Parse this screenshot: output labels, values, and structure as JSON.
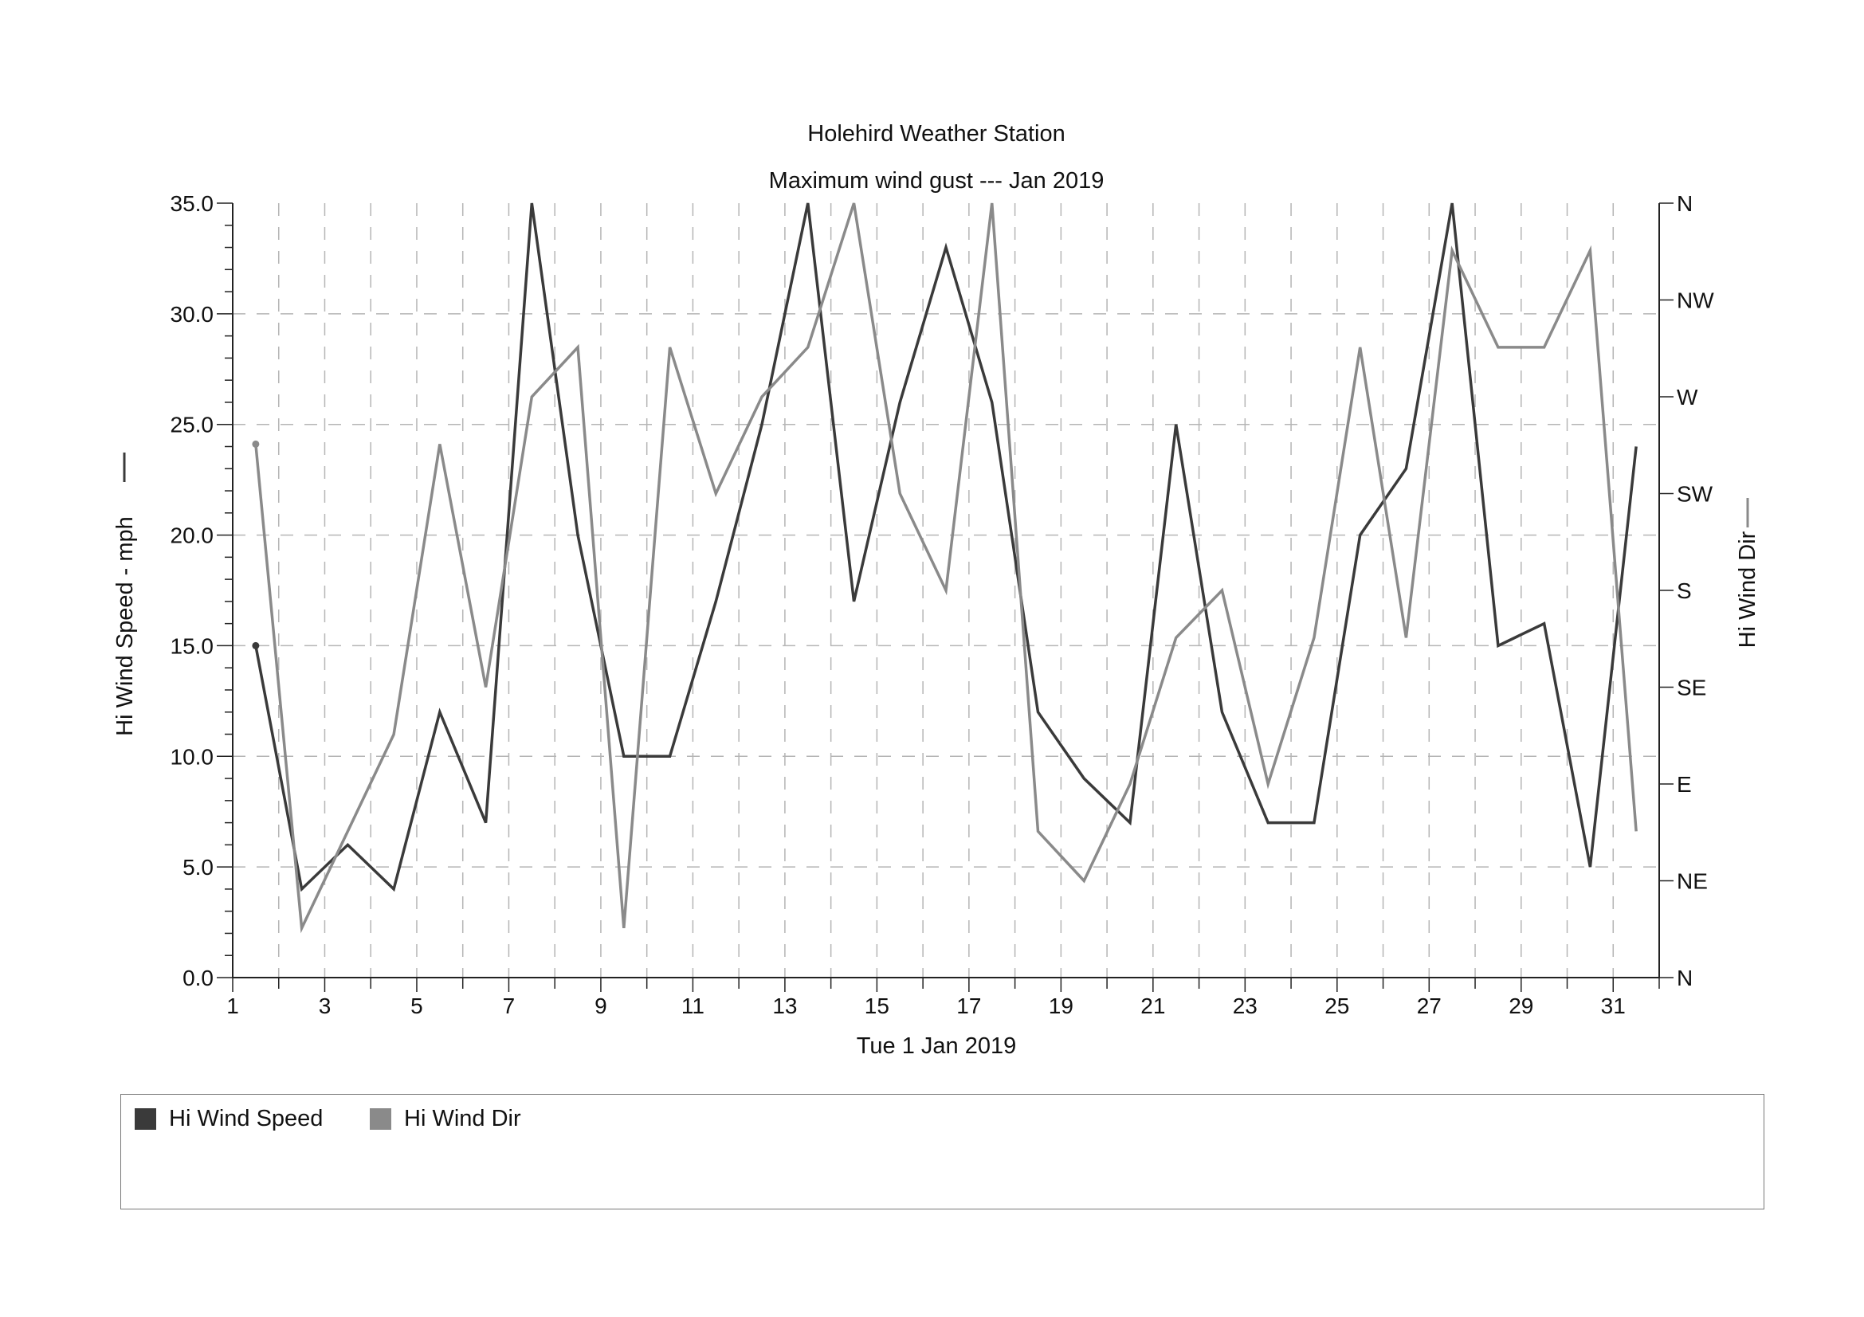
{
  "chart_data": {
    "type": "line",
    "title": "Holehird Weather Station",
    "subtitle": "Maximum wind gust --- Jan 2019",
    "xlabel": "Tue 1 Jan 2019",
    "ylabel": "Hi Wind Speed - mph",
    "y2label": "Hi Wind Dir",
    "xlim": [
      1,
      32
    ],
    "ylim": [
      0,
      35
    ],
    "x_ticks": [
      1,
      3,
      5,
      7,
      9,
      11,
      13,
      15,
      17,
      19,
      21,
      23,
      25,
      27,
      29,
      31
    ],
    "y_ticks": [
      "0.0",
      "5.0",
      "10.0",
      "15.0",
      "20.0",
      "25.0",
      "30.0",
      "35.0"
    ],
    "y2_ticks": [
      "N",
      "NE",
      "E",
      "SE",
      "S",
      "SW",
      "W",
      "NW",
      "N"
    ],
    "y2lim": [
      0,
      360
    ],
    "grid": true,
    "legend_position": "bottom",
    "x": [
      1.5,
      2.5,
      3.5,
      4.5,
      5.5,
      6.5,
      7.5,
      8.5,
      9.5,
      10.5,
      11.5,
      12.5,
      13.5,
      14.5,
      15.5,
      16.5,
      17.5,
      18.5,
      19.5,
      20.5,
      21.5,
      22.5,
      23.5,
      24.5,
      25.5,
      26.5,
      27.5,
      28.5,
      29.5,
      30.5,
      31.5
    ],
    "series": [
      {
        "name": "Hi Wind Speed",
        "axis": "left",
        "color": "#3a3a3a",
        "values": [
          15,
          4,
          6,
          4,
          12,
          7,
          35,
          20,
          10,
          10,
          17,
          25,
          35,
          17,
          26,
          33,
          26,
          12,
          9,
          7,
          25,
          12,
          7,
          7,
          20,
          23,
          35,
          15,
          16,
          5,
          24
        ]
      },
      {
        "name": "Hi Wind Dir",
        "axis": "right",
        "color": "#8a8a8a",
        "values": [
          248,
          23,
          68,
          113,
          248,
          135,
          270,
          293,
          23,
          293,
          225,
          270,
          293,
          360,
          225,
          180,
          360,
          68,
          45,
          90,
          158,
          180,
          90,
          158,
          293,
          158,
          338,
          293,
          293,
          338,
          68
        ]
      }
    ]
  }
}
